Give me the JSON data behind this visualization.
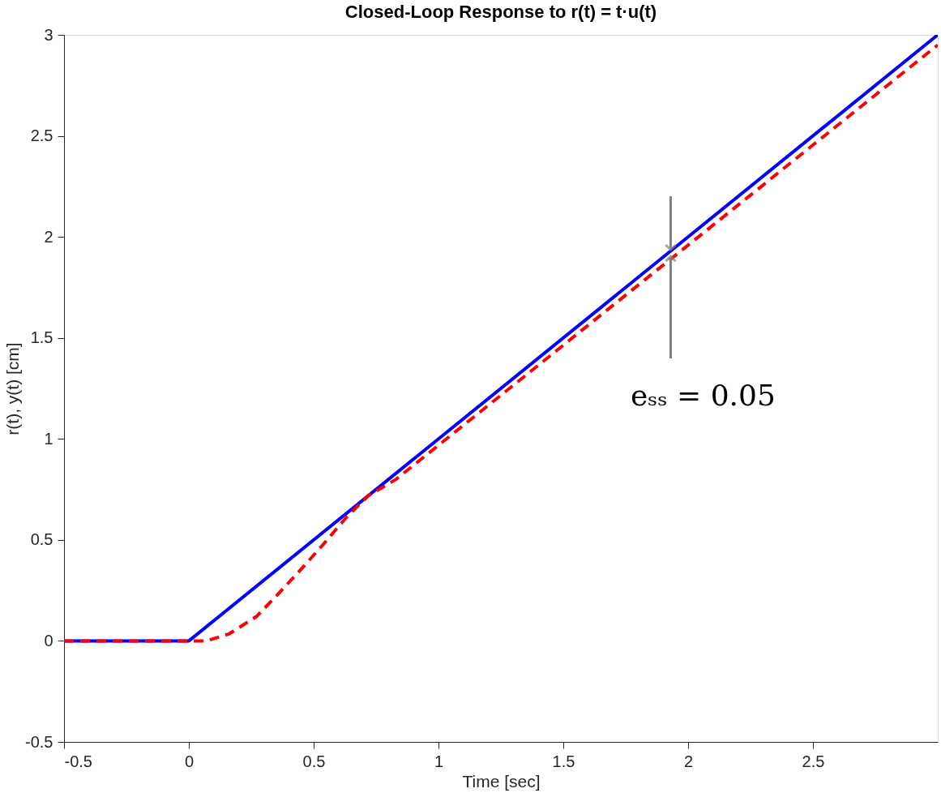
{
  "chart_data": {
    "type": "line",
    "title": "Closed-Loop Response to r(t) = t·u(t)",
    "xlabel": "Time    [sec]",
    "ylabel": "r(t),  y(t)    [cm]",
    "series": [
      {
        "color": "#0000ff",
        "line_style": "solid",
        "x": [
          -0.5,
          0,
          3
        ],
        "values": [
          0,
          0,
          3
        ]
      },
      {
        "color": "#ff0000",
        "line_style": "dashed",
        "x": [
          -0.5,
          0.07,
          0.16,
          0.27,
          0.36,
          0.45,
          0.54,
          0.63,
          0.72,
          0.83,
          3
        ],
        "values": [
          0,
          0,
          0.034,
          0.12,
          0.235,
          0.355,
          0.48,
          0.61,
          0.72,
          0.8,
          2.95
        ]
      }
    ],
    "xlim": [
      -0.5,
      3
    ],
    "ylim": [
      -0.5,
      3
    ],
    "xticks": [
      -0.5,
      0,
      0.5,
      1,
      1.5,
      2,
      2.5
    ],
    "yticks": [
      -0.5,
      0,
      0.5,
      1,
      1.5,
      2,
      2.5,
      3
    ],
    "grid": false,
    "marker": "none",
    "annotations": [
      {
        "text": "eₛₛ = 0.05",
        "x": 1.93,
        "y": 1.92
      }
    ]
  }
}
